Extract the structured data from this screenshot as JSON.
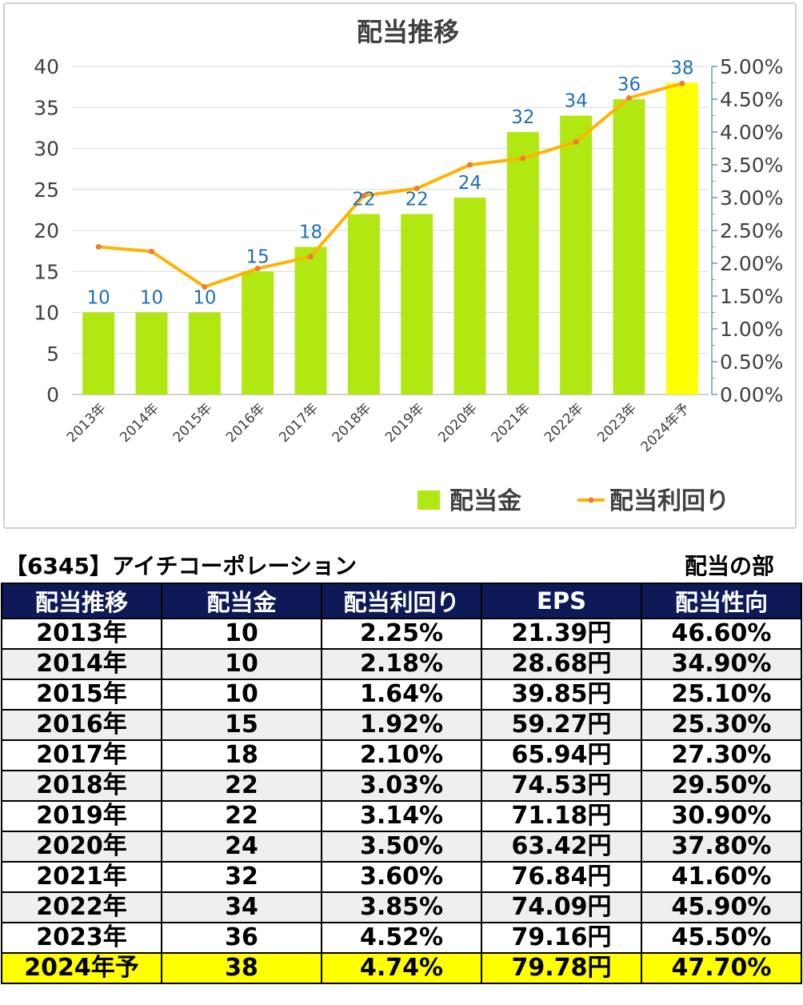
{
  "chart_data": {
    "type": "bar+line",
    "title": "配当推移",
    "categories": [
      "2013年",
      "2014年",
      "2015年",
      "2016年",
      "2017年",
      "2018年",
      "2019年",
      "2020年",
      "2021年",
      "2022年",
      "2023年",
      "2024年予"
    ],
    "series": [
      {
        "name": "配当金",
        "type": "bar",
        "axis": "left",
        "values": [
          10,
          10,
          10,
          15,
          18,
          22,
          22,
          24,
          32,
          34,
          36,
          38
        ],
        "color": "#b2e812",
        "highlight_color": "#ffff00",
        "highlight_index": 11
      },
      {
        "name": "配当利回り",
        "type": "line",
        "axis": "right",
        "values": [
          2.25,
          2.18,
          1.64,
          1.92,
          2.1,
          3.03,
          3.14,
          3.5,
          3.6,
          3.85,
          4.52,
          4.74
        ],
        "color": "#ffb300",
        "marker_color": "#ed7d31"
      }
    ],
    "y_left": {
      "min": 0,
      "max": 40,
      "ticks": [
        "0",
        "5",
        "10",
        "15",
        "20",
        "25",
        "30",
        "35",
        "40"
      ]
    },
    "y_right": {
      "min": 0,
      "max": 5,
      "ticks": [
        "0.00%",
        "0.50%",
        "1.00%",
        "1.50%",
        "2.00%",
        "2.50%",
        "3.00%",
        "3.50%",
        "4.00%",
        "4.50%",
        "5.00%"
      ]
    },
    "data_labels": [
      "10",
      "10",
      "10",
      "15",
      "18",
      "22",
      "22",
      "24",
      "32",
      "34",
      "36",
      "38"
    ],
    "data_label_color": "#1f6fb5",
    "legend": {
      "position": "bottom-right",
      "items": [
        "配当金",
        "配当利回り"
      ]
    },
    "grid": true
  },
  "table": {
    "company": "【6345】アイチコーポレーション",
    "section": "配当の部",
    "headers": [
      "配当推移",
      "配当金",
      "配当利回り",
      "EPS",
      "配当性向"
    ],
    "rows": [
      [
        "2013年",
        "10",
        "2.25%",
        "21.39円",
        "46.60%"
      ],
      [
        "2014年",
        "10",
        "2.18%",
        "28.68円",
        "34.90%"
      ],
      [
        "2015年",
        "10",
        "1.64%",
        "39.85円",
        "25.10%"
      ],
      [
        "2016年",
        "15",
        "1.92%",
        "59.27円",
        "25.30%"
      ],
      [
        "2017年",
        "18",
        "2.10%",
        "65.94円",
        "27.30%"
      ],
      [
        "2018年",
        "22",
        "3.03%",
        "74.53円",
        "29.50%"
      ],
      [
        "2019年",
        "22",
        "3.14%",
        "71.18円",
        "30.90%"
      ],
      [
        "2020年",
        "24",
        "3.50%",
        "63.42円",
        "37.80%"
      ],
      [
        "2021年",
        "32",
        "3.60%",
        "76.84円",
        "41.60%"
      ],
      [
        "2022年",
        "34",
        "3.85%",
        "74.09円",
        "45.90%"
      ],
      [
        "2023年",
        "36",
        "4.52%",
        "79.16円",
        "45.50%"
      ],
      [
        "2024年予",
        "38",
        "4.74%",
        "79.78円",
        "47.70%"
      ]
    ],
    "header_color": "#0d1a57",
    "forecast_row_color": "#ffff00"
  }
}
